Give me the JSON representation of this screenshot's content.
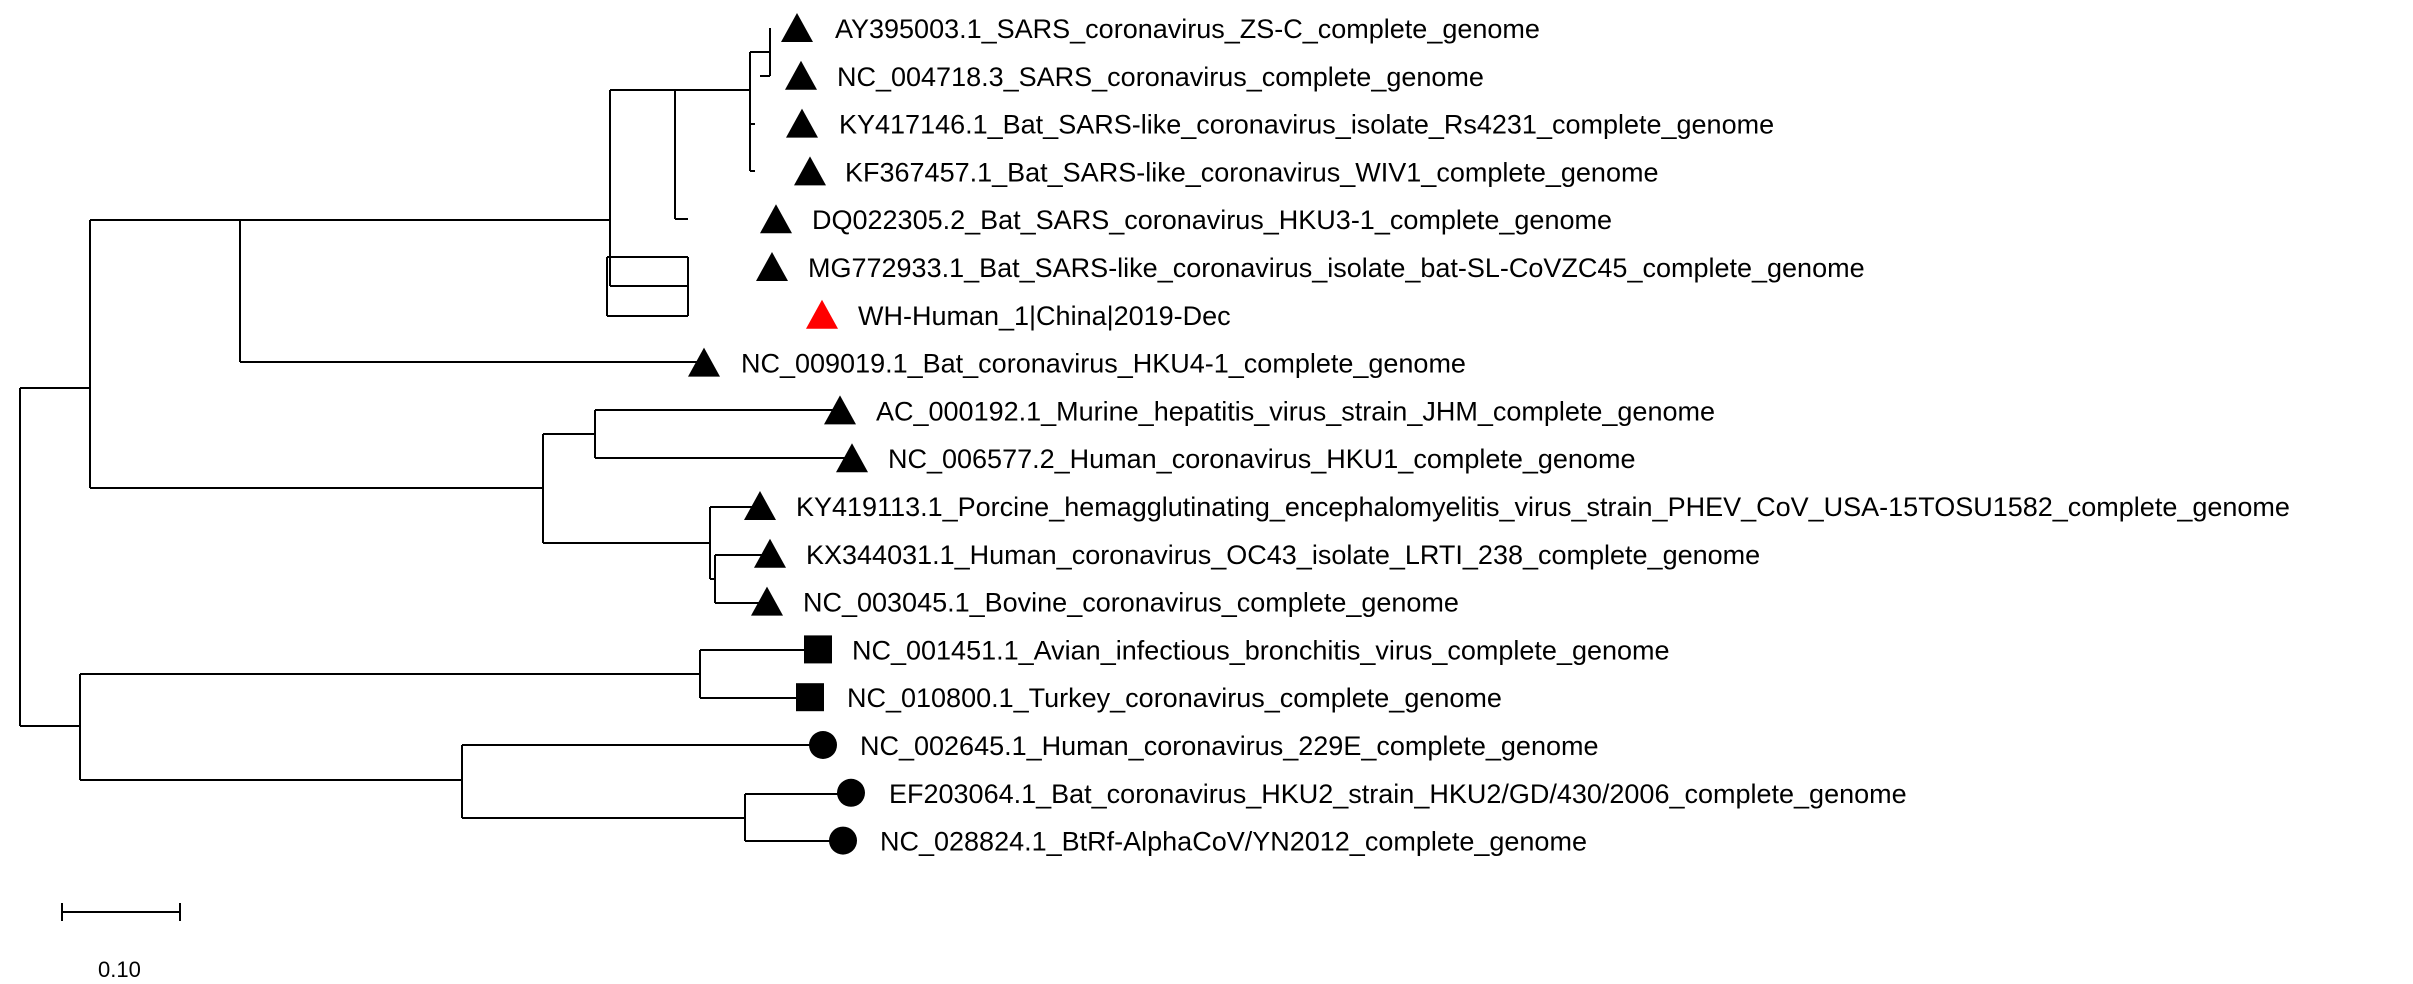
{
  "figure": {
    "type": "phylogenetic-tree",
    "scale_bar_label": "0.10",
    "scale_bar_value": 0.1,
    "colors": {
      "branch": "#000000",
      "marker_default": "#000000",
      "marker_highlight": "#ff0000"
    }
  },
  "taxa": [
    {
      "label": "AY395003.1_SARS_coronavirus_ZS-C_complete_genome",
      "marker": "triangle",
      "color": "#000000"
    },
    {
      "label": "NC_004718.3_SARS_coronavirus_complete_genome",
      "marker": "triangle",
      "color": "#000000"
    },
    {
      "label": "KY417146.1_Bat_SARS-like_coronavirus_isolate_Rs4231_complete_genome",
      "marker": "triangle",
      "color": "#000000"
    },
    {
      "label": "KF367457.1_Bat_SARS-like_coronavirus_WIV1_complete_genome",
      "marker": "triangle",
      "color": "#000000"
    },
    {
      "label": "DQ022305.2_Bat_SARS_coronavirus_HKU3-1_complete_genome",
      "marker": "triangle",
      "color": "#000000"
    },
    {
      "label": "MG772933.1_Bat_SARS-like_coronavirus_isolate_bat-SL-CoVZC45_complete_genome",
      "marker": "triangle",
      "color": "#000000"
    },
    {
      "label": "WH-Human_1|China|2019-Dec",
      "marker": "triangle",
      "color": "#ff0000"
    },
    {
      "label": "NC_009019.1_Bat_coronavirus_HKU4-1_complete_genome",
      "marker": "triangle",
      "color": "#000000"
    },
    {
      "label": "AC_000192.1_Murine_hepatitis_virus_strain_JHM_complete_genome",
      "marker": "triangle",
      "color": "#000000"
    },
    {
      "label": "NC_006577.2_Human_coronavirus_HKU1_complete_genome",
      "marker": "triangle",
      "color": "#000000"
    },
    {
      "label": "KY419113.1_Porcine_hemagglutinating_encephalomyelitis_virus_strain_PHEV_CoV_USA-15TOSU1582_complete_genome",
      "marker": "triangle",
      "color": "#000000"
    },
    {
      "label": "KX344031.1_Human_coronavirus_OC43_isolate_LRTI_238_complete_genome",
      "marker": "triangle",
      "color": "#000000"
    },
    {
      "label": "NC_003045.1_Bovine_coronavirus_complete_genome",
      "marker": "triangle",
      "color": "#000000"
    },
    {
      "label": "NC_001451.1_Avian_infectious_bronchitis_virus_complete_genome",
      "marker": "square",
      "color": "#000000"
    },
    {
      "label": "NC_010800.1_Turkey_coronavirus_complete_genome",
      "marker": "square",
      "color": "#000000"
    },
    {
      "label": "NC_002645.1_Human_coronavirus_229E_complete_genome",
      "marker": "circle",
      "color": "#000000"
    },
    {
      "label": "EF203064.1_Bat_coronavirus_HKU2_strain_HKU2/GD/430/2006_complete_genome",
      "marker": "circle",
      "color": "#000000"
    },
    {
      "label": "NC_028824.1_BtRf-AlphaCoV/YN2012_complete_genome",
      "marker": "circle",
      "color": "#000000"
    }
  ]
}
